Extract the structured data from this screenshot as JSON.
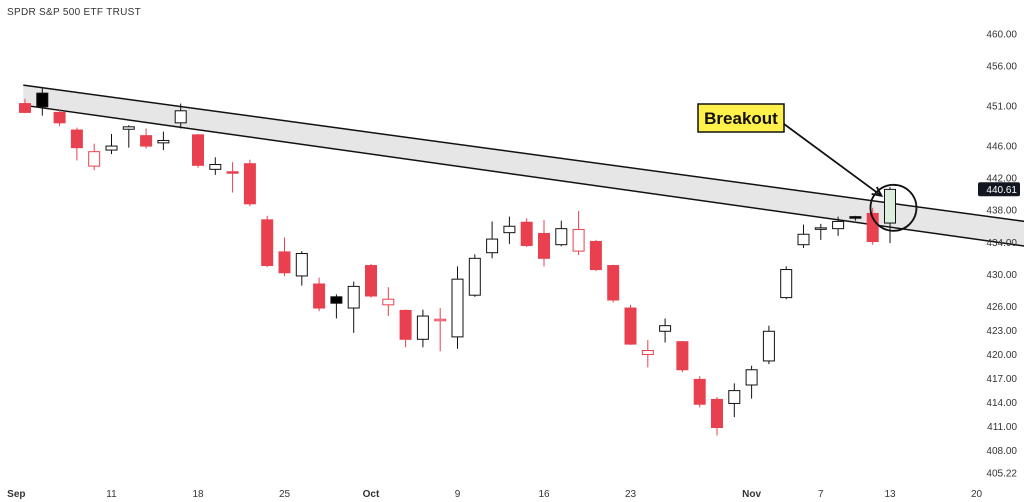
{
  "chart_data": {
    "type": "candlestick",
    "title": "SPDR S&P 500 ETF TRUST",
    "y_axis": {
      "ticks": [
        "460.00",
        "456.00",
        "451.00",
        "446.00",
        "442.00",
        "438.00",
        "434.00",
        "430.00",
        "426.00",
        "423.00",
        "420.00",
        "417.00",
        "414.00",
        "411.00",
        "408.00",
        "405.22"
      ],
      "ylim": [
        404.6,
        461.6
      ],
      "position": "right"
    },
    "x_axis": {
      "labels": [
        {
          "text": "Sep",
          "x": 0.5,
          "bold": true
        },
        {
          "text": "11",
          "x": 6
        },
        {
          "text": "18",
          "x": 11
        },
        {
          "text": "25",
          "x": 16
        },
        {
          "text": "Oct",
          "x": 21,
          "bold": true
        },
        {
          "text": "9",
          "x": 26
        },
        {
          "text": "16",
          "x": 31
        },
        {
          "text": "23",
          "x": 36
        },
        {
          "text": "Nov",
          "x": 43,
          "bold": true
        },
        {
          "text": "7",
          "x": 47
        },
        {
          "text": "13",
          "x": 51
        },
        {
          "text": "20",
          "x": 56
        }
      ]
    },
    "colors": {
      "up_fill": "#ffffff",
      "up_border": "#111111",
      "down": "#e8404f",
      "channel": "#e6e6e6"
    },
    "candles": [
      {
        "x": 0,
        "o": 451.3,
        "h": 451.9,
        "l": 450.1,
        "c": 450.2,
        "dir": "down"
      },
      {
        "x": 1,
        "o": 450.9,
        "h": 453.2,
        "l": 449.8,
        "c": 452.6,
        "dir": "up",
        "fill": "#000000"
      },
      {
        "x": 2,
        "o": 450.2,
        "h": 450.5,
        "l": 448.5,
        "c": 448.9,
        "dir": "down"
      },
      {
        "x": 3,
        "o": 448.0,
        "h": 448.3,
        "l": 444.2,
        "c": 445.8,
        "dir": "down"
      },
      {
        "x": 4,
        "o": 443.5,
        "h": 446.3,
        "l": 443.0,
        "c": 445.3,
        "dir": "down",
        "hollow": true
      },
      {
        "x": 5,
        "o": 445.5,
        "h": 447.5,
        "l": 445.0,
        "c": 446.0,
        "dir": "up"
      },
      {
        "x": 6,
        "o": 448.1,
        "h": 448.6,
        "l": 445.8,
        "c": 448.4,
        "dir": "up"
      },
      {
        "x": 7,
        "o": 447.3,
        "h": 448.2,
        "l": 445.7,
        "c": 446.0,
        "dir": "down"
      },
      {
        "x": 8,
        "o": 446.4,
        "h": 447.8,
        "l": 445.5,
        "c": 446.7,
        "dir": "up"
      },
      {
        "x": 9,
        "o": 448.9,
        "h": 451.3,
        "l": 448.2,
        "c": 450.4,
        "dir": "up"
      },
      {
        "x": 10,
        "o": 447.4,
        "h": 447.5,
        "l": 443.3,
        "c": 443.6,
        "dir": "down"
      },
      {
        "x": 11,
        "o": 443.1,
        "h": 444.6,
        "l": 442.4,
        "c": 443.7,
        "dir": "up"
      },
      {
        "x": 12,
        "o": 442.8,
        "h": 444.0,
        "l": 440.2,
        "c": 442.7,
        "dir": "down"
      },
      {
        "x": 13,
        "o": 443.8,
        "h": 444.3,
        "l": 438.5,
        "c": 438.8,
        "dir": "down"
      },
      {
        "x": 14,
        "o": 436.8,
        "h": 437.3,
        "l": 430.9,
        "c": 431.1,
        "dir": "down"
      },
      {
        "x": 15,
        "o": 432.8,
        "h": 434.6,
        "l": 429.8,
        "c": 430.2,
        "dir": "down"
      },
      {
        "x": 16,
        "o": 429.8,
        "h": 432.9,
        "l": 428.6,
        "c": 432.6,
        "dir": "up"
      },
      {
        "x": 17,
        "o": 428.8,
        "h": 429.6,
        "l": 425.4,
        "c": 425.8,
        "dir": "down"
      },
      {
        "x": 18,
        "o": 427.2,
        "h": 427.5,
        "l": 424.5,
        "c": 426.4,
        "dir": "up",
        "fill": "#000000"
      },
      {
        "x": 19,
        "o": 425.8,
        "h": 429.1,
        "l": 422.7,
        "c": 428.5,
        "dir": "up"
      },
      {
        "x": 20,
        "o": 431.1,
        "h": 431.3,
        "l": 427.1,
        "c": 427.3,
        "dir": "down"
      },
      {
        "x": 21,
        "o": 426.9,
        "h": 428.4,
        "l": 424.8,
        "c": 426.2,
        "dir": "down",
        "hollow": true
      },
      {
        "x": 22,
        "o": 425.5,
        "h": 425.6,
        "l": 420.9,
        "c": 421.9,
        "dir": "down"
      },
      {
        "x": 23,
        "o": 421.9,
        "h": 425.6,
        "l": 420.9,
        "c": 424.8,
        "dir": "up"
      },
      {
        "x": 24,
        "o": 424.3,
        "h": 425.8,
        "l": 420.4,
        "c": 424.4,
        "dir": "down",
        "hollow": true
      },
      {
        "x": 25,
        "o": 422.2,
        "h": 431.0,
        "l": 420.7,
        "c": 429.4,
        "dir": "up"
      },
      {
        "x": 26,
        "o": 427.4,
        "h": 432.5,
        "l": 427.2,
        "c": 432.0,
        "dir": "up"
      },
      {
        "x": 27,
        "o": 432.7,
        "h": 436.6,
        "l": 432.0,
        "c": 434.4,
        "dir": "up"
      },
      {
        "x": 28,
        "o": 435.2,
        "h": 437.2,
        "l": 433.8,
        "c": 436.0,
        "dir": "up"
      },
      {
        "x": 29,
        "o": 436.5,
        "h": 437.0,
        "l": 433.4,
        "c": 433.6,
        "dir": "down"
      },
      {
        "x": 30,
        "o": 435.1,
        "h": 436.8,
        "l": 431.0,
        "c": 432.0,
        "dir": "down"
      },
      {
        "x": 31,
        "o": 433.7,
        "h": 436.7,
        "l": 433.5,
        "c": 435.7,
        "dir": "up"
      },
      {
        "x": 32,
        "o": 432.9,
        "h": 437.9,
        "l": 432.4,
        "c": 435.6,
        "dir": "down",
        "hollow": true
      },
      {
        "x": 33,
        "o": 434.1,
        "h": 434.3,
        "l": 430.4,
        "c": 430.6,
        "dir": "down"
      },
      {
        "x": 34,
        "o": 431.1,
        "h": 431.2,
        "l": 426.5,
        "c": 426.8,
        "dir": "down"
      },
      {
        "x": 35,
        "o": 425.8,
        "h": 426.2,
        "l": 421.2,
        "c": 421.3,
        "dir": "down"
      },
      {
        "x": 36,
        "o": 420.5,
        "h": 421.8,
        "l": 418.4,
        "c": 420.0,
        "dir": "down",
        "hollow": true
      },
      {
        "x": 37,
        "o": 422.9,
        "h": 424.5,
        "l": 421.5,
        "c": 423.6,
        "dir": "up"
      },
      {
        "x": 38,
        "o": 421.6,
        "h": 421.7,
        "l": 417.8,
        "c": 418.1,
        "dir": "down"
      },
      {
        "x": 39,
        "o": 416.9,
        "h": 417.3,
        "l": 413.4,
        "c": 413.8,
        "dir": "down"
      },
      {
        "x": 40,
        "o": 414.4,
        "h": 414.7,
        "l": 409.9,
        "c": 410.9,
        "dir": "down"
      },
      {
        "x": 41,
        "o": 413.9,
        "h": 416.4,
        "l": 412.2,
        "c": 415.5,
        "dir": "up"
      },
      {
        "x": 42,
        "o": 416.2,
        "h": 418.6,
        "l": 414.5,
        "c": 418.1,
        "dir": "up"
      },
      {
        "x": 43,
        "o": 419.2,
        "h": 423.6,
        "l": 418.8,
        "c": 422.9,
        "dir": "up"
      },
      {
        "x": 44,
        "o": 427.1,
        "h": 431.0,
        "l": 426.9,
        "c": 430.6,
        "dir": "up"
      },
      {
        "x": 45,
        "o": 433.7,
        "h": 436.2,
        "l": 433.3,
        "c": 435.0,
        "dir": "up"
      },
      {
        "x": 46,
        "o": 435.7,
        "h": 436.3,
        "l": 434.3,
        "c": 435.8,
        "dir": "up"
      },
      {
        "x": 47,
        "o": 435.7,
        "h": 437.2,
        "l": 434.8,
        "c": 436.6,
        "dir": "up"
      },
      {
        "x": 48,
        "o": 437.0,
        "h": 437.3,
        "l": 436.7,
        "c": 437.2,
        "dir": "up",
        "fill": "#000000"
      },
      {
        "x": 49,
        "o": 437.6,
        "h": 438.3,
        "l": 433.7,
        "c": 434.1,
        "dir": "down"
      },
      {
        "x": 50,
        "o": 436.4,
        "h": 440.9,
        "l": 433.9,
        "c": 440.6,
        "dir": "up",
        "fill": "#dcefdc"
      }
    ],
    "channel": {
      "upper": {
        "x0": 0.9,
        "y0": 453.6,
        "x1": 60.5,
        "y1": 436.1
      },
      "lower": {
        "x0": 0.9,
        "y0": 451.1,
        "x1": 60.5,
        "y1": 433.0
      }
    },
    "annotation": {
      "label": "Breakout",
      "circle_at": {
        "x": 50.2,
        "y": 438.3
      },
      "box_color": "#fff04a"
    },
    "last_price": {
      "value": "440.61"
    }
  }
}
